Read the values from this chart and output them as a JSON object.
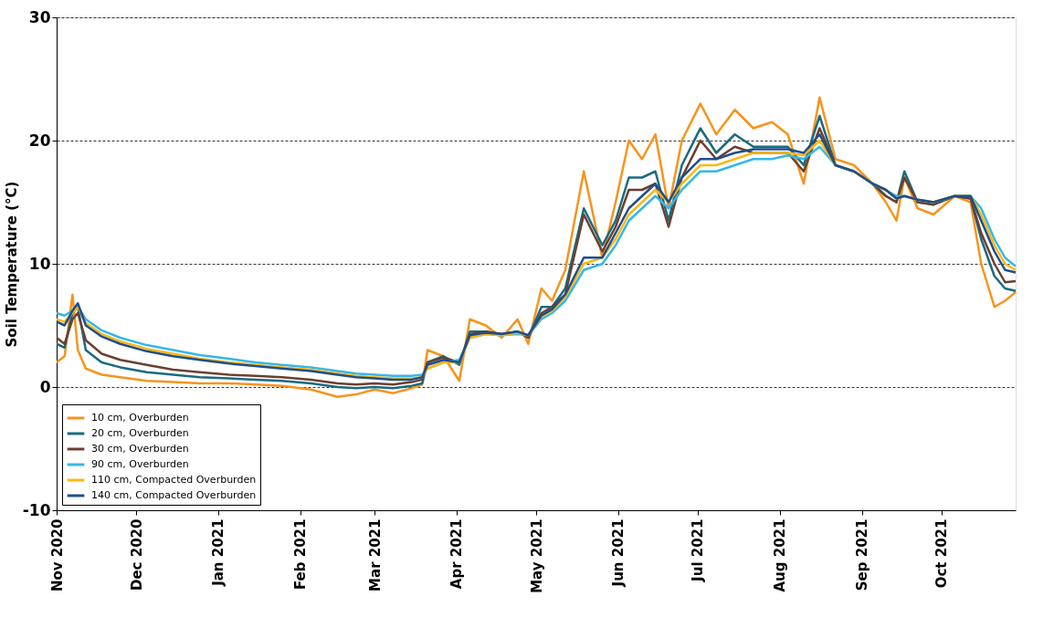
{
  "chart_data": {
    "type": "line",
    "ylabel": "Soil Temperature (°C)",
    "x": [
      "2020-11-01",
      "2020-11-04",
      "2020-11-07",
      "2020-11-09",
      "2020-11-12",
      "2020-11-18",
      "2020-11-25",
      "2020-12-05",
      "2020-12-15",
      "2020-12-25",
      "2021-01-05",
      "2021-01-15",
      "2021-01-25",
      "2021-02-05",
      "2021-02-15",
      "2021-02-22",
      "2021-03-01",
      "2021-03-08",
      "2021-03-15",
      "2021-03-19",
      "2021-03-21",
      "2021-03-27",
      "2021-04-02",
      "2021-04-06",
      "2021-04-12",
      "2021-04-18",
      "2021-04-24",
      "2021-04-28",
      "2021-05-03",
      "2021-05-07",
      "2021-05-12",
      "2021-05-19",
      "2021-05-26",
      "2021-05-31",
      "2021-06-05",
      "2021-06-10",
      "2021-06-15",
      "2021-06-20",
      "2021-06-25",
      "2021-07-02",
      "2021-07-08",
      "2021-07-15",
      "2021-07-22",
      "2021-07-29",
      "2021-08-04",
      "2021-08-10",
      "2021-08-16",
      "2021-08-22",
      "2021-08-29",
      "2021-09-05",
      "2021-09-10",
      "2021-09-14",
      "2021-09-17",
      "2021-09-22",
      "2021-09-28",
      "2021-10-06",
      "2021-10-12",
      "2021-10-16",
      "2021-10-21",
      "2021-10-25",
      "2021-10-29"
    ],
    "series": [
      {
        "name": "10 cm, Overburden",
        "color": "#f7941d",
        "values": [
          2.0,
          2.5,
          7.5,
          3.0,
          1.5,
          1.0,
          0.8,
          0.5,
          0.4,
          0.3,
          0.3,
          0.2,
          0.1,
          -0.2,
          -0.8,
          -0.6,
          -0.2,
          -0.5,
          -0.1,
          0.2,
          3.0,
          2.5,
          0.5,
          5.5,
          5.0,
          4.0,
          5.5,
          3.5,
          8.0,
          7.0,
          9.5,
          17.5,
          10.5,
          15.0,
          20.0,
          18.5,
          20.5,
          14.5,
          20.0,
          23.0,
          20.5,
          22.5,
          21.0,
          21.5,
          20.5,
          16.5,
          23.5,
          18.5,
          18.0,
          16.5,
          15.0,
          13.5,
          17.0,
          14.5,
          14.0,
          15.5,
          15.0,
          10.0,
          6.5,
          7.0,
          7.7
        ]
      },
      {
        "name": "20 cm, Overburden",
        "color": "#1a6b80",
        "values": [
          3.5,
          3.2,
          6.0,
          6.5,
          3.0,
          2.0,
          1.6,
          1.2,
          1.0,
          0.8,
          0.7,
          0.6,
          0.5,
          0.3,
          0.0,
          -0.1,
          0.0,
          -0.1,
          0.1,
          0.3,
          2.0,
          2.5,
          1.8,
          4.5,
          4.5,
          4.3,
          4.5,
          4.0,
          6.5,
          6.5,
          8.0,
          14.5,
          11.5,
          13.5,
          17.0,
          17.0,
          17.5,
          13.5,
          18.0,
          21.0,
          19.0,
          20.5,
          19.5,
          19.5,
          19.5,
          18.0,
          22.0,
          18.0,
          17.5,
          16.5,
          15.5,
          15.0,
          17.5,
          15.0,
          14.8,
          15.5,
          15.3,
          12.0,
          9.0,
          8.0,
          7.8
        ]
      },
      {
        "name": "30 cm, Overburden",
        "color": "#6b4030",
        "values": [
          4.0,
          3.5,
          5.5,
          6.0,
          3.8,
          2.7,
          2.2,
          1.8,
          1.4,
          1.2,
          1.0,
          0.9,
          0.8,
          0.6,
          0.3,
          0.2,
          0.3,
          0.2,
          0.4,
          0.6,
          2.0,
          2.4,
          2.0,
          4.3,
          4.5,
          4.3,
          4.5,
          4.0,
          6.0,
          6.5,
          7.5,
          14.0,
          11.0,
          13.0,
          16.0,
          16.0,
          16.5,
          13.0,
          17.0,
          20.0,
          18.5,
          19.5,
          19.0,
          19.0,
          19.0,
          17.5,
          21.0,
          18.0,
          17.5,
          16.5,
          15.5,
          15.0,
          17.0,
          15.0,
          14.8,
          15.5,
          15.3,
          12.5,
          10.0,
          8.5,
          8.6
        ]
      },
      {
        "name": "90 cm, Overburden",
        "color": "#35b7e8",
        "values": [
          6.0,
          5.8,
          6.2,
          6.5,
          5.5,
          4.6,
          4.0,
          3.4,
          3.0,
          2.6,
          2.3,
          2.0,
          1.8,
          1.6,
          1.3,
          1.1,
          1.0,
          0.9,
          0.9,
          1.0,
          1.5,
          2.0,
          2.2,
          4.0,
          4.3,
          4.2,
          4.3,
          4.2,
          5.5,
          6.0,
          7.0,
          9.5,
          10.0,
          11.5,
          13.5,
          14.5,
          15.5,
          14.5,
          16.0,
          17.5,
          17.5,
          18.0,
          18.5,
          18.5,
          18.8,
          18.5,
          19.5,
          18.0,
          17.5,
          16.5,
          16.0,
          15.5,
          15.5,
          15.2,
          15.0,
          15.5,
          15.5,
          14.5,
          12.0,
          10.5,
          9.8
        ]
      },
      {
        "name": "110 cm, Compacted Overburden",
        "color": "#fdb813",
        "values": [
          5.5,
          5.3,
          6.0,
          6.5,
          5.2,
          4.3,
          3.7,
          3.1,
          2.7,
          2.3,
          2.0,
          1.8,
          1.6,
          1.4,
          1.1,
          0.9,
          0.8,
          0.7,
          0.7,
          0.8,
          1.5,
          2.0,
          2.0,
          4.0,
          4.3,
          4.2,
          4.4,
          4.2,
          5.7,
          6.2,
          7.3,
          10.0,
          10.5,
          12.0,
          14.0,
          15.0,
          16.0,
          15.0,
          16.5,
          18.0,
          18.0,
          18.5,
          19.0,
          19.0,
          19.0,
          18.8,
          20.0,
          18.0,
          17.5,
          16.5,
          16.0,
          15.3,
          15.5,
          15.2,
          15.0,
          15.5,
          15.5,
          14.0,
          11.5,
          10.0,
          9.5
        ]
      },
      {
        "name": "140 cm, Compacted Overburden",
        "color": "#1f4e8c",
        "values": [
          5.3,
          5.0,
          6.2,
          6.8,
          5.0,
          4.1,
          3.5,
          2.9,
          2.5,
          2.2,
          1.9,
          1.7,
          1.5,
          1.3,
          1.0,
          0.8,
          0.7,
          0.6,
          0.6,
          0.8,
          1.8,
          2.2,
          2.0,
          4.2,
          4.4,
          4.3,
          4.5,
          4.2,
          5.8,
          6.3,
          7.5,
          10.5,
          10.5,
          12.5,
          14.5,
          15.5,
          16.5,
          15.0,
          17.0,
          18.5,
          18.5,
          19.0,
          19.3,
          19.3,
          19.3,
          19.0,
          20.5,
          18.0,
          17.5,
          16.5,
          16.0,
          15.3,
          15.5,
          15.2,
          15.0,
          15.5,
          15.5,
          13.5,
          11.0,
          9.5,
          9.3
        ]
      }
    ],
    "xlim": [
      "2020-11-01",
      "2021-10-29"
    ],
    "xticks": [
      {
        "value": "2020-11-01",
        "label": "Nov 2020"
      },
      {
        "value": "2020-12-01",
        "label": "Dec 2020"
      },
      {
        "value": "2021-01-01",
        "label": "Jan 2021"
      },
      {
        "value": "2021-02-01",
        "label": "Feb 2021"
      },
      {
        "value": "2021-03-01",
        "label": "Mar 2021"
      },
      {
        "value": "2021-04-01",
        "label": "Apr 2021"
      },
      {
        "value": "2021-05-01",
        "label": "May 2021"
      },
      {
        "value": "2021-06-01",
        "label": "Jun 2021"
      },
      {
        "value": "2021-07-01",
        "label": "Jul 2021"
      },
      {
        "value": "2021-08-01",
        "label": "Aug 2021"
      },
      {
        "value": "2021-09-01",
        "label": "Sep 2021"
      },
      {
        "value": "2021-10-01",
        "label": "Oct 2021"
      }
    ],
    "ylim": [
      -10,
      30
    ],
    "yticks": [
      -10,
      0,
      10,
      20,
      30
    ],
    "grid": "y",
    "legend": "bottom left",
    "line_style": "solid",
    "marker": "none"
  }
}
